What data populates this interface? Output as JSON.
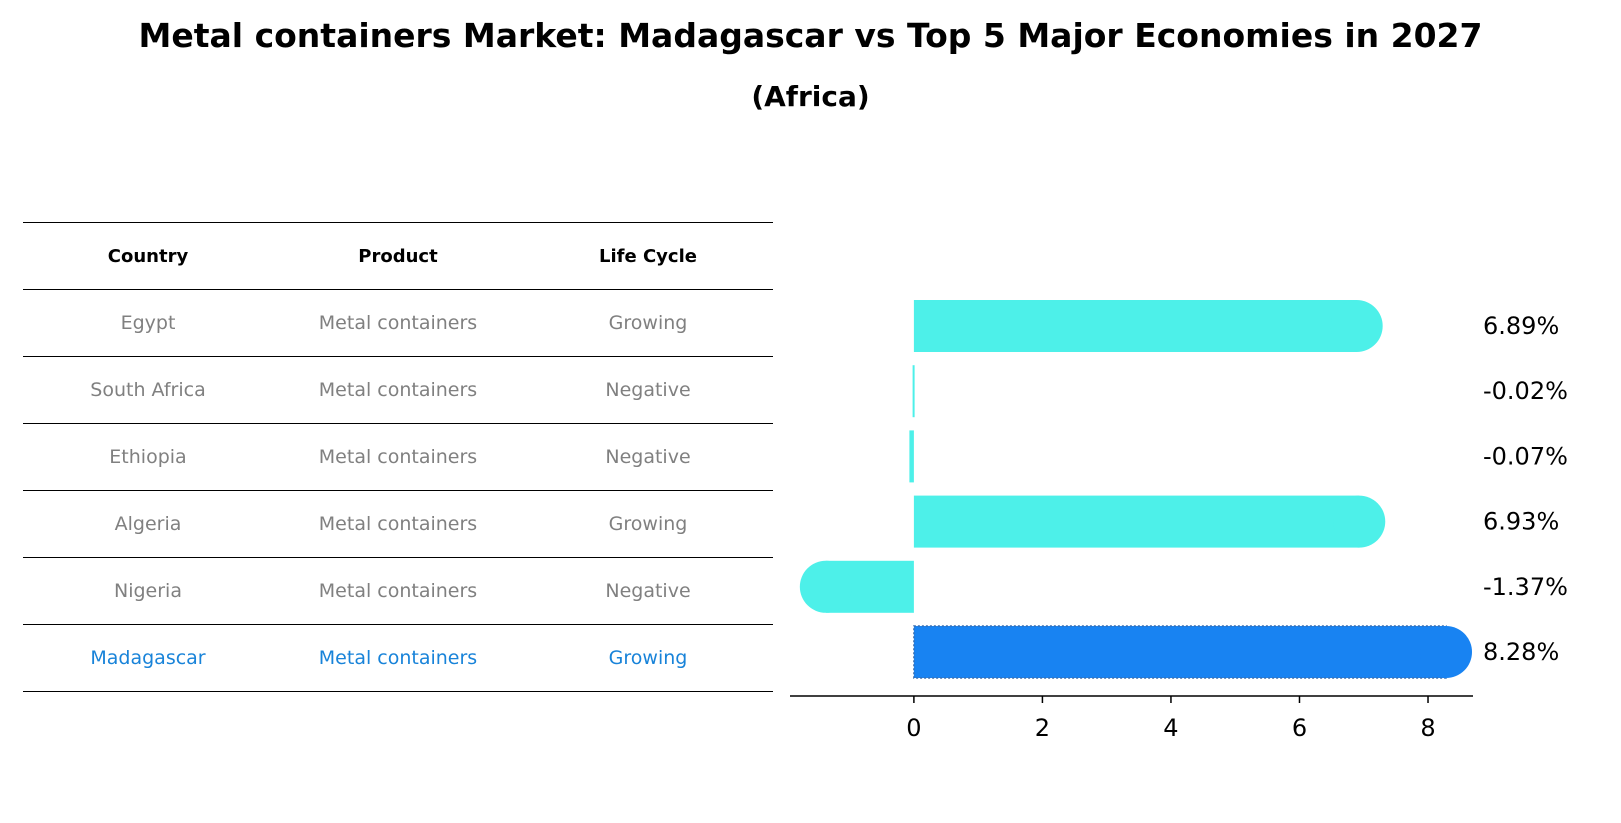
{
  "title": "Metal containers Market: Madagascar vs Top 5 Major Economies in 2027",
  "subtitle": "(Africa)",
  "table": {
    "headers": [
      "Country",
      "Product",
      "Life Cycle"
    ],
    "rows": [
      {
        "country": "Egypt",
        "product": "Metal containers",
        "life_cycle": "Growing"
      },
      {
        "country": "South Africa",
        "product": "Metal containers",
        "life_cycle": "Negative"
      },
      {
        "country": "Ethiopia",
        "product": "Metal containers",
        "life_cycle": "Negative"
      },
      {
        "country": "Algeria",
        "product": "Metal containers",
        "life_cycle": "Growing"
      },
      {
        "country": "Nigeria",
        "product": "Metal containers",
        "life_cycle": "Negative"
      },
      {
        "country": "Madagascar",
        "product": "Metal containers",
        "life_cycle": "Growing"
      }
    ]
  },
  "chart_data": {
    "type": "bar",
    "orientation": "horizontal",
    "categories": [
      "Egypt",
      "South Africa",
      "Ethiopia",
      "Algeria",
      "Nigeria",
      "Madagascar"
    ],
    "values": [
      6.89,
      -0.02,
      -0.07,
      6.93,
      -1.37,
      8.28
    ],
    "value_labels": [
      "6.89%",
      "-0.02%",
      "-0.07%",
      "6.93%",
      "-1.37%",
      "8.28%"
    ],
    "highlight": "Madagascar",
    "xticks": [
      0,
      2,
      4,
      6,
      8
    ],
    "xlim": [
      -1.85,
      8.7
    ],
    "colors": {
      "default": "#4df0e9",
      "highlight": "#1883f2",
      "text": "#000000"
    }
  }
}
